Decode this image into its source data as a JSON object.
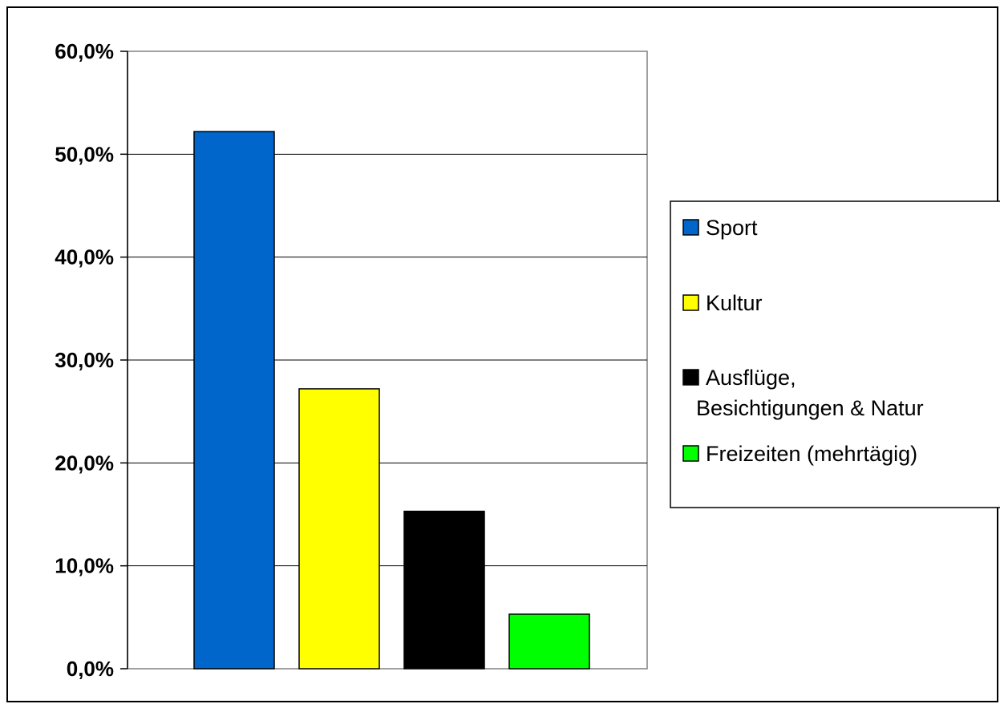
{
  "chart_data": {
    "type": "bar",
    "title": "",
    "xlabel": "",
    "ylabel": "",
    "ylim": [
      0,
      60
    ],
    "yticks": [
      0,
      10,
      20,
      30,
      40,
      50,
      60
    ],
    "ytick_labels": [
      "0,0%",
      "10,0%",
      "20,0%",
      "30,0%",
      "40,0%",
      "50,0%",
      "60,0%"
    ],
    "grid": true,
    "legend_position": "right",
    "series": [
      {
        "name": "Sport",
        "value": 52.2,
        "color": "#0066CC",
        "legend_lines": [
          "Sport"
        ]
      },
      {
        "name": "Kultur",
        "value": 27.2,
        "color": "#FFFF00",
        "legend_lines": [
          "Kultur"
        ]
      },
      {
        "name": "Ausflüge, Besichtigungen & Natur",
        "value": 15.3,
        "color": "#000000",
        "legend_lines": [
          "Ausflüge,",
          "Besichtigungen & Natur"
        ]
      },
      {
        "name": "Freizeiten (mehrtägig)",
        "value": 5.3,
        "color": "#00FF00",
        "legend_lines": [
          "Freizeiten (mehrtägig)"
        ]
      }
    ]
  }
}
